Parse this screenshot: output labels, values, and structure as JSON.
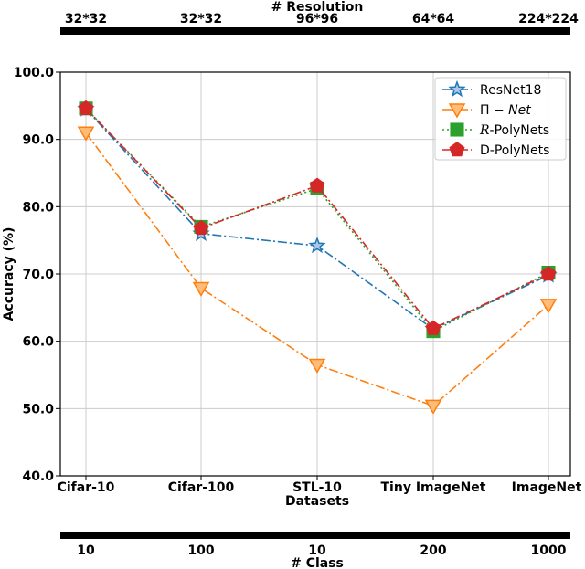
{
  "chart_data": {
    "type": "line",
    "categories": [
      "Cifar-10",
      "Cifar-100",
      "STL-10",
      "Tiny ImageNet",
      "ImageNet"
    ],
    "xlabel": "Datasets",
    "ylabel": "Accuracy (%)",
    "ylim": [
      40,
      100
    ],
    "yticks": [
      "40.0",
      "50.0",
      "60.0",
      "70.0",
      "80.0",
      "90.0",
      "100.0"
    ],
    "grid": true,
    "legend_position": "top-right",
    "top_axis": {
      "title": "# Resolution",
      "labels": [
        "32*32",
        "32*32",
        "96*96",
        "64*64",
        "224*224"
      ]
    },
    "bottom_axis": {
      "title": "# Class",
      "labels": [
        "10",
        "100",
        "10",
        "200",
        "1000"
      ]
    },
    "series": [
      {
        "name": "ResNet18",
        "name_prefix": "",
        "name_suffix": "",
        "marker": "star",
        "color": "#1f77b4",
        "fill": "#aec7e8",
        "dash": "10,3,2,3",
        "values": [
          94.5,
          76.0,
          74.2,
          61.8,
          69.8
        ]
      },
      {
        "name": "Π − ",
        "name_prefix": "",
        "name_suffix": "Net",
        "marker": "triangle-down",
        "color": "#ff7f0e",
        "fill": "#ffbb78",
        "dash": "10,3,2,3",
        "values": [
          91.0,
          67.9,
          56.5,
          50.4,
          65.4
        ]
      },
      {
        "name": "-PolyNets",
        "name_prefix": "R",
        "name_suffix": "",
        "marker": "square",
        "color": "#2ca02c",
        "fill": "#2ca02c",
        "dash": "2,3",
        "values": [
          94.6,
          77.0,
          82.7,
          61.5,
          70.2
        ]
      },
      {
        "name": "D-PolyNets",
        "name_prefix": "",
        "name_suffix": "",
        "marker": "pentagon",
        "color": "#d62728",
        "fill": "#d62728",
        "dash": "10,3,2,3",
        "values": [
          94.6,
          76.8,
          83.1,
          61.9,
          70.0
        ]
      }
    ]
  }
}
